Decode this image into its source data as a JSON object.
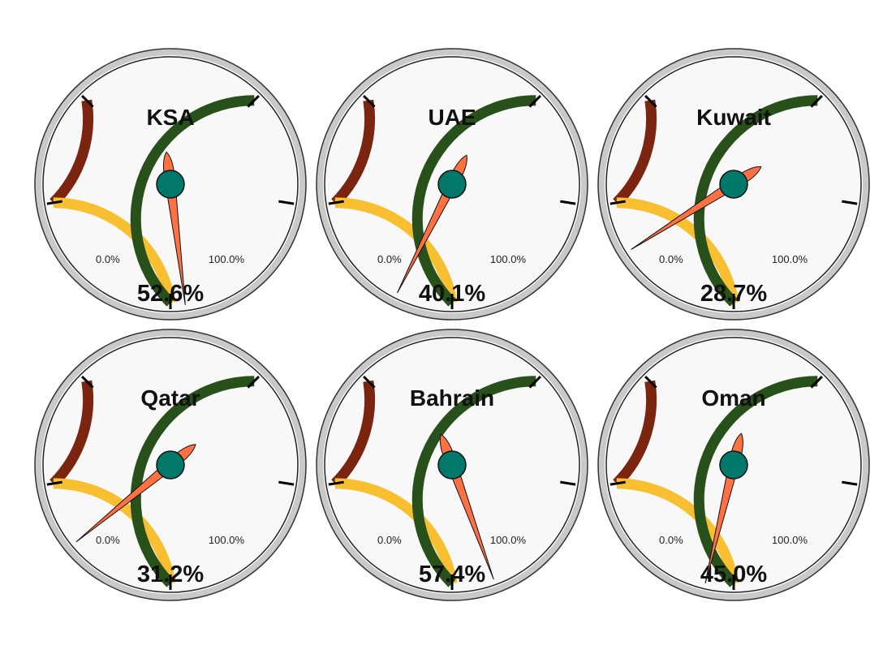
{
  "chart_data": {
    "type": "gauge",
    "min_label": "0.0%",
    "max_label": "100.0%",
    "range": [
      0,
      100
    ],
    "bands": [
      {
        "from": 0,
        "to": 20,
        "color": "#7b2410"
      },
      {
        "from": 20,
        "to": 50,
        "color": "#f8bf30"
      },
      {
        "from": 50,
        "to": 100,
        "color": "#27501a"
      }
    ],
    "gauges": [
      {
        "name": "KSA",
        "value": 52.6,
        "label": "52.6%"
      },
      {
        "name": "UAE",
        "value": 40.1,
        "label": "40.1%"
      },
      {
        "name": "Kuwait",
        "value": 28.7,
        "label": "28.7%"
      },
      {
        "name": "Qatar",
        "value": 31.2,
        "label": "31.2%"
      },
      {
        "name": "Bahrain",
        "value": 57.4,
        "label": "57.4%"
      },
      {
        "name": "Oman",
        "value": 45.0,
        "label": "45.0%"
      }
    ]
  },
  "colors": {
    "face": "#f8f8f8",
    "rim": "#c9c9c9",
    "needle": "#ff7043",
    "hub": "#00796b"
  }
}
